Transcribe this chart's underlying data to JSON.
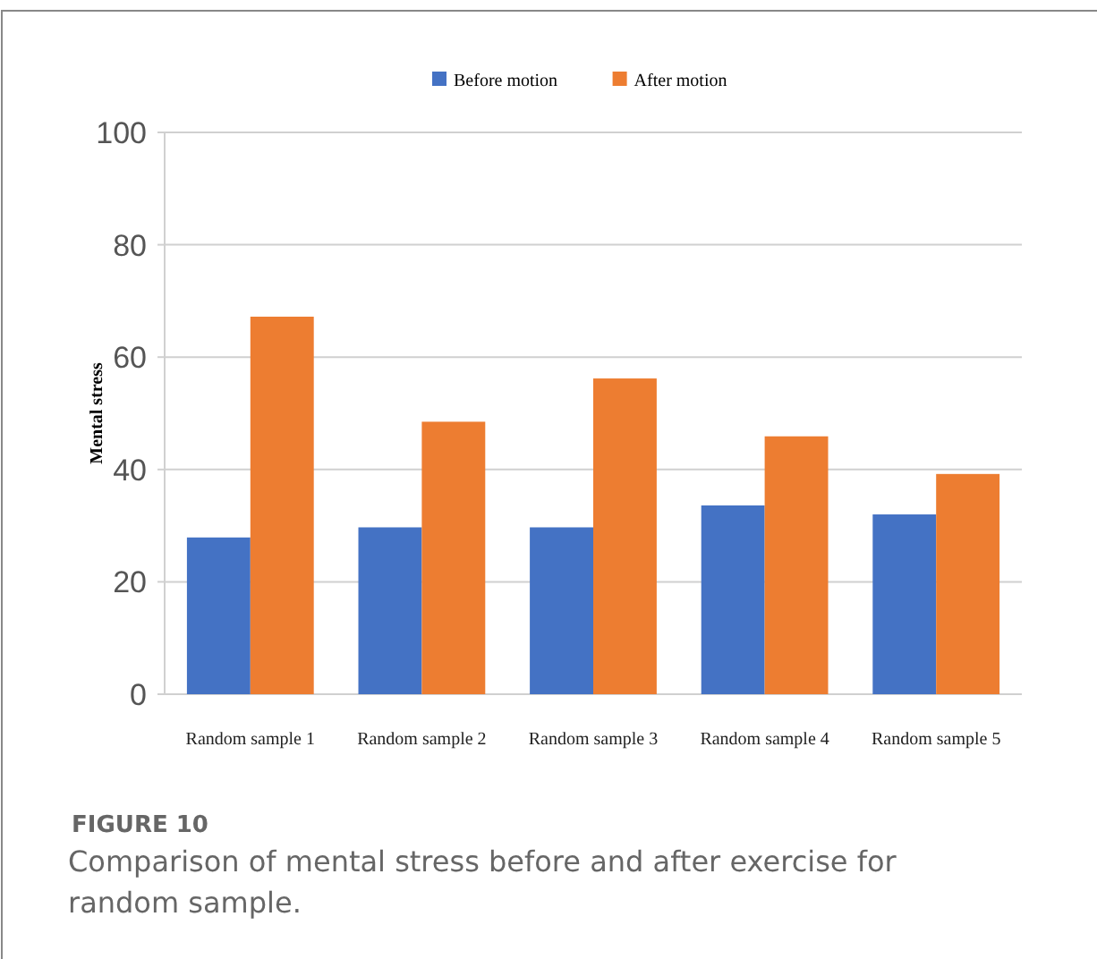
{
  "chart_data": {
    "type": "bar",
    "ylabel": "Mental stress",
    "categories": [
      "Random sample 1",
      "Random sample 2",
      "Random sample 3",
      "Random sample 4",
      "Random sample 5"
    ],
    "series": [
      {
        "name": "Before motion",
        "color": "#4472c4",
        "values": [
          27.9,
          29.7,
          29.7,
          33.6,
          32.0
        ]
      },
      {
        "name": "After motion",
        "color": "#ed7d31",
        "values": [
          67.2,
          48.5,
          56.2,
          45.9,
          39.2
        ]
      }
    ],
    "ylim": [
      0,
      100
    ],
    "yticks": [
      0,
      20,
      40,
      60,
      80,
      100
    ],
    "grid": "y",
    "legend": "top",
    "annotations": [
      "FIGURE 10",
      "Comparison of mental stress before and after exercise for random sample."
    ]
  }
}
